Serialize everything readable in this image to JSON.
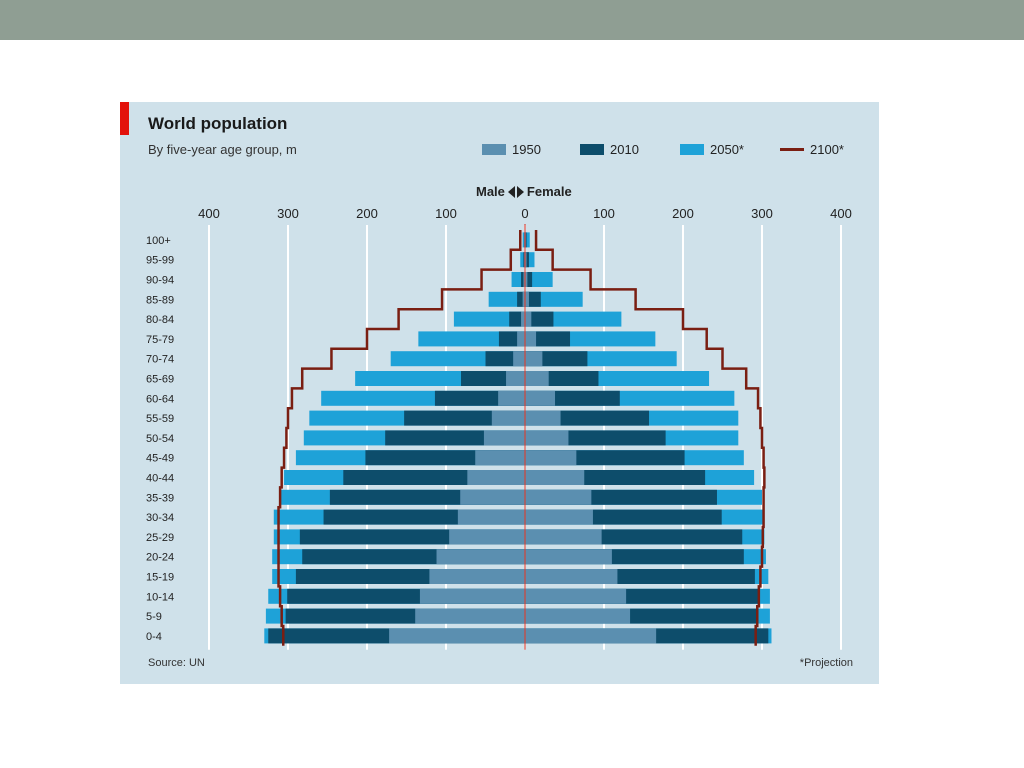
{
  "chart_data": {
    "type": "bar",
    "subtype": "population-pyramid",
    "title": "World population",
    "subtitle": "By five-year age group, m",
    "gender_labels": {
      "left": "Male",
      "right": "Female"
    },
    "source": "Source: UN",
    "note": "*Projection",
    "xlim": [
      -400,
      400
    ],
    "x_ticks": [
      -400,
      -300,
      -200,
      -100,
      0,
      100,
      200,
      300,
      400
    ],
    "x_tick_labels": [
      "400",
      "300",
      "200",
      "100",
      "0",
      "100",
      "200",
      "300",
      "400"
    ],
    "grid": true,
    "legend_position": "top",
    "categories": [
      "100+",
      "95-99",
      "90-94",
      "85-89",
      "80-84",
      "75-79",
      "70-74",
      "65-69",
      "60-64",
      "55-59",
      "50-54",
      "45-49",
      "40-44",
      "35-39",
      "30-34",
      "25-29",
      "20-24",
      "15-19",
      "10-14",
      "5-9",
      "0-4"
    ],
    "series": [
      {
        "name": "1950",
        "kind": "bar",
        "color": "#5b8fb0",
        "male": [
          1,
          1,
          2,
          3,
          5,
          10,
          15,
          24,
          34,
          42,
          52,
          63,
          73,
          82,
          85,
          96,
          112,
          121,
          133,
          139,
          172
        ],
        "female": [
          1,
          2,
          3,
          5,
          8,
          14,
          22,
          30,
          38,
          45,
          55,
          65,
          75,
          84,
          86,
          97,
          110,
          117,
          128,
          133,
          166
        ]
      },
      {
        "name": "2010",
        "kind": "bar",
        "color": "#0d4d6b",
        "male": [
          1,
          2,
          5,
          10,
          20,
          33,
          50,
          81,
          114,
          153,
          177,
          202,
          230,
          247,
          255,
          285,
          282,
          290,
          301,
          303,
          325
        ],
        "female": [
          2,
          5,
          9,
          20,
          36,
          57,
          79,
          93,
          120,
          157,
          178,
          202,
          228,
          243,
          249,
          275,
          277,
          291,
          295,
          293,
          308
        ]
      },
      {
        "name": "2050*",
        "kind": "bar",
        "color": "#1ea2d8",
        "male": [
          3,
          6,
          17,
          46,
          90,
          135,
          170,
          215,
          258,
          273,
          280,
          290,
          305,
          310,
          318,
          318,
          320,
          320,
          325,
          328,
          330
        ],
        "female": [
          6,
          12,
          35,
          73,
          122,
          165,
          192,
          233,
          265,
          270,
          270,
          277,
          290,
          300,
          302,
          303,
          305,
          308,
          310,
          310,
          312
        ]
      },
      {
        "name": "2100*",
        "kind": "step-line",
        "color": "#7a1e12",
        "male": [
          6,
          18,
          55,
          105,
          160,
          200,
          245,
          282,
          295,
          300,
          302,
          305,
          308,
          310,
          312,
          312,
          312,
          312,
          310,
          308,
          306
        ],
        "female": [
          14,
          35,
          83,
          140,
          200,
          230,
          250,
          280,
          295,
          298,
          300,
          302,
          303,
          302,
          302,
          301,
          300,
          298,
          296,
          294,
          292
        ]
      }
    ]
  }
}
